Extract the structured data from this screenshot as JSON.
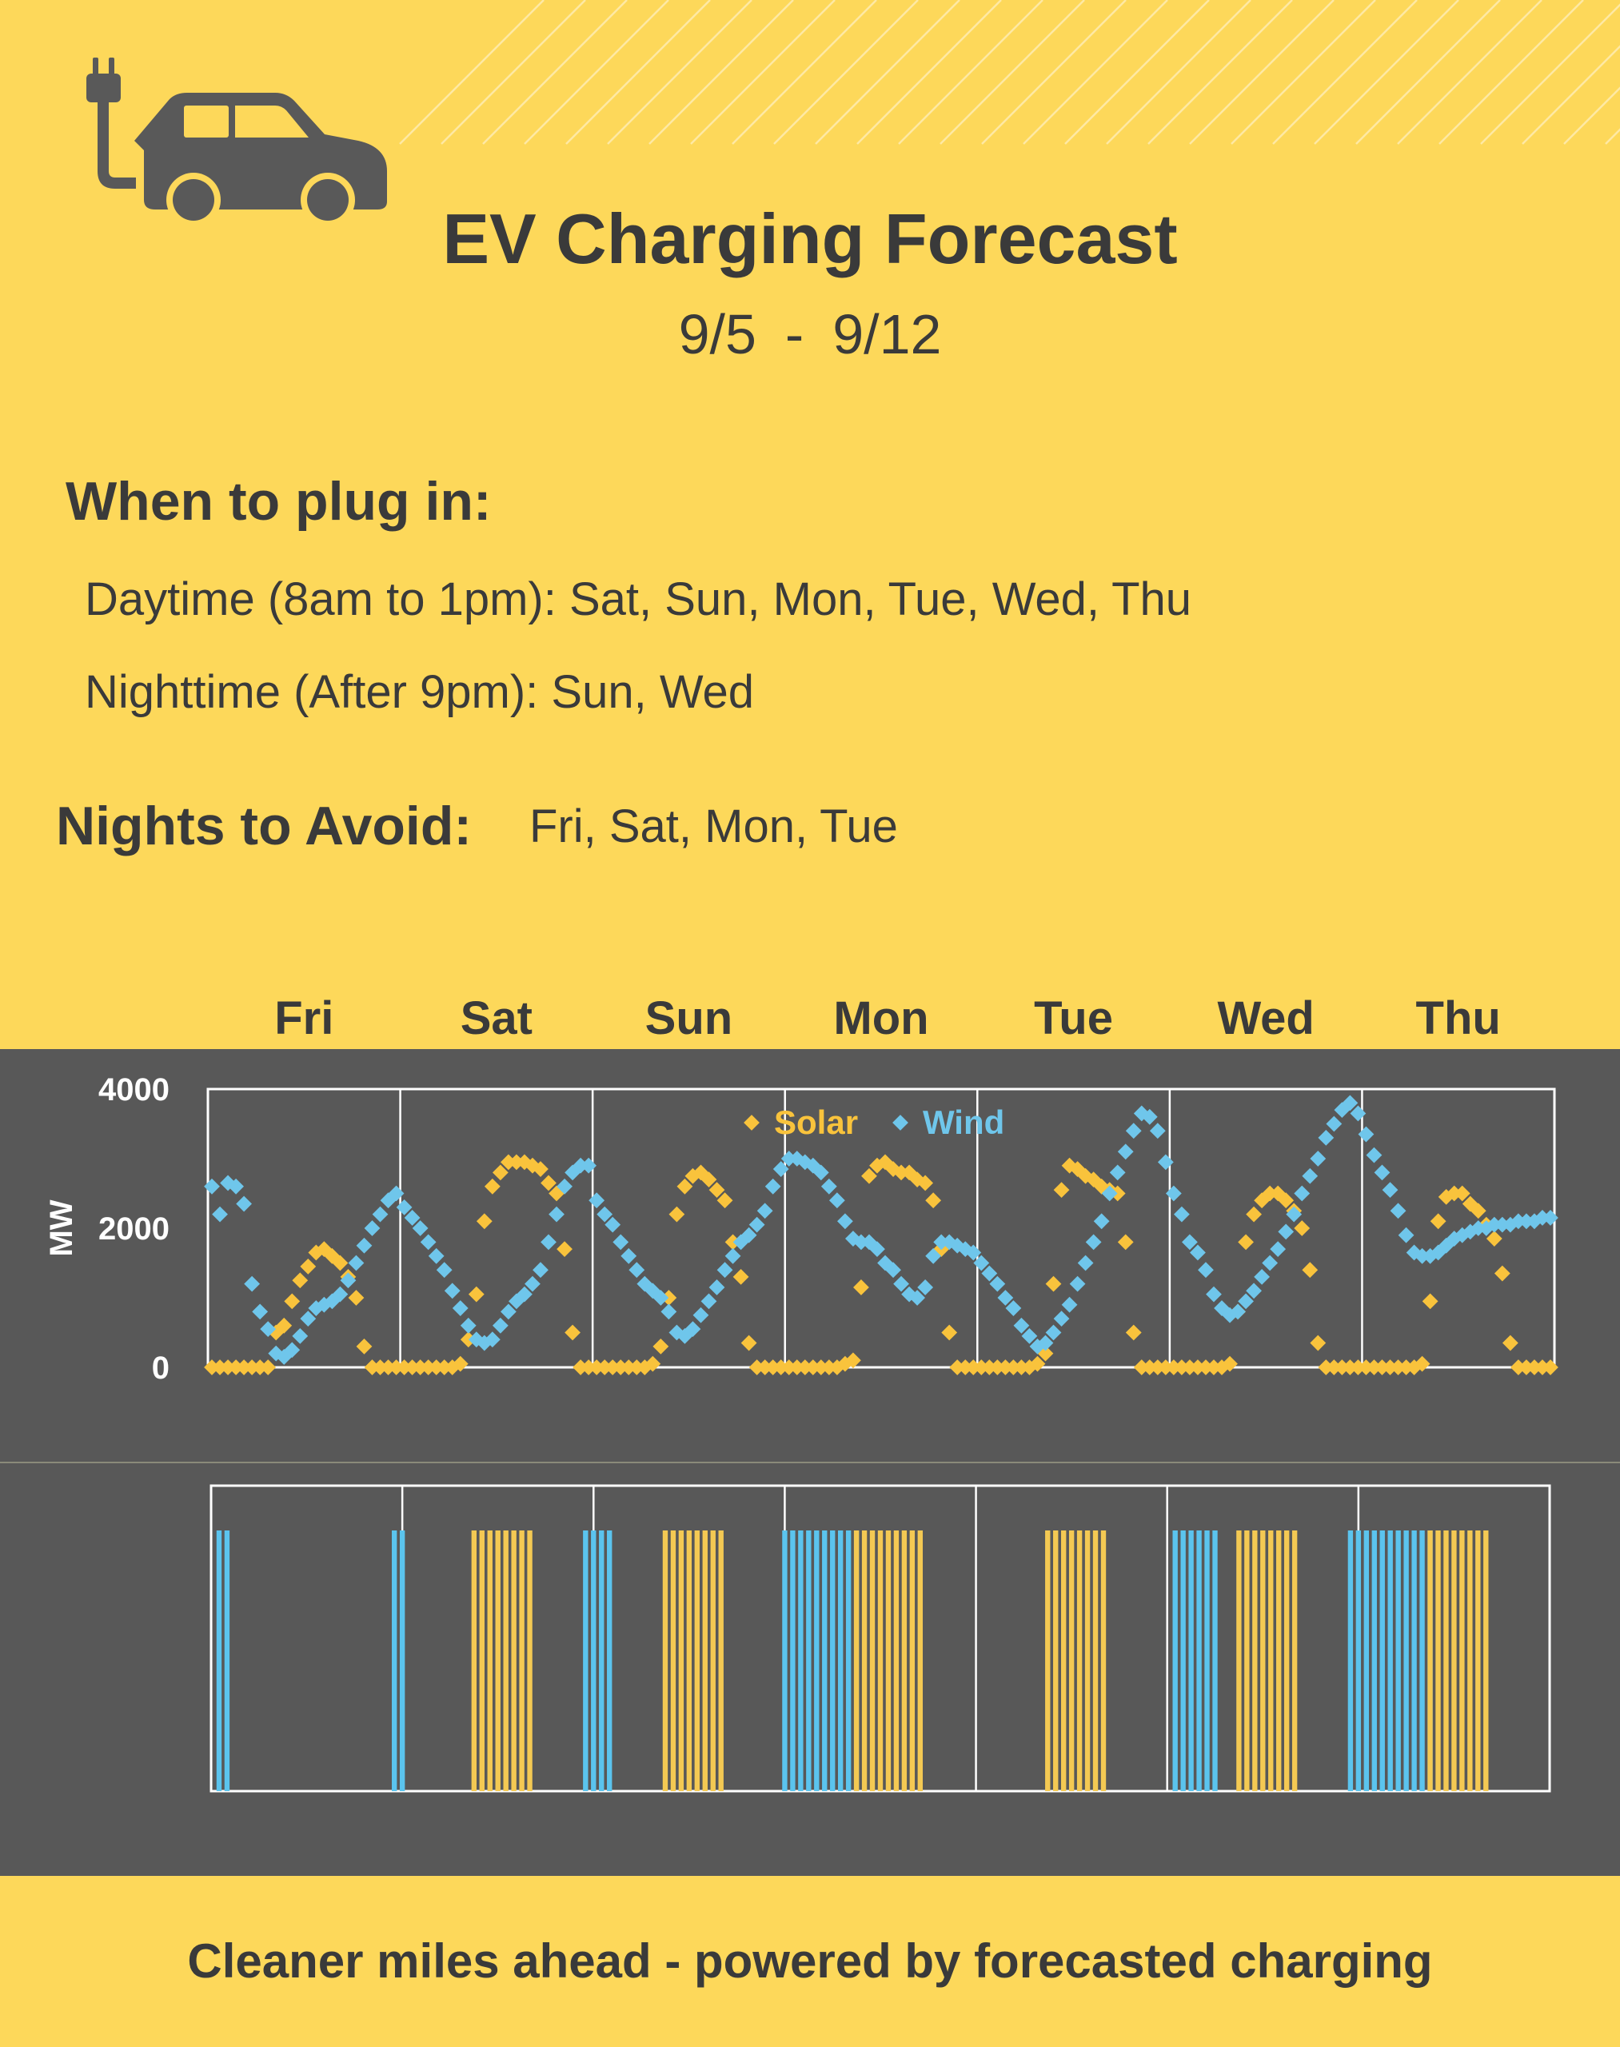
{
  "title": "EV Charging Forecast",
  "date_start": "9/5",
  "date_sep": "-",
  "date_end": "9/12",
  "plug_heading": "When to plug in:",
  "daytime_label": "Daytime (8am to 1pm):",
  "daytime_days": "Sat, Sun, Mon, Tue, Wed, Thu",
  "nighttime_label": "Nighttime  (After 9pm):",
  "nighttime_days": "Sun, Wed",
  "avoid_heading": "Nights to Avoid:",
  "avoid_days": "Fri, Sat, Mon, Tue",
  "footer": "Cleaner miles ahead - powered by forecasted charging",
  "icons": [
    "ev-plug-icon",
    "car-icon"
  ],
  "colors": {
    "background": "#FDD85A",
    "panel": "#585858",
    "text": "#3a3a3a",
    "solar": "#F9C33C",
    "wind": "#6FC6EB",
    "solar_bar": "#F4C953",
    "wind_bar": "#5BC4EE"
  },
  "chart_data": [
    {
      "type": "scatter",
      "title": "",
      "xlabel": "",
      "ylabel": "MW",
      "ylim": [
        0,
        4000
      ],
      "yticks": [
        0,
        2000,
        4000
      ],
      "xlim": [
        0,
        168
      ],
      "x_unit": "hour of forecast week (hourly points)",
      "categories": [
        "Fri",
        "Sat",
        "Sun",
        "Mon",
        "Tue",
        "Wed",
        "Thu"
      ],
      "grid": true,
      "legend": "top-center",
      "series": [
        {
          "name": "Solar",
          "color": "#F9C33C",
          "values": [
            0,
            0,
            0,
            0,
            0,
            0,
            0,
            0,
            500,
            600,
            950,
            1250,
            1450,
            1650,
            1700,
            1600,
            1500,
            1300,
            1000,
            300,
            0,
            0,
            0,
            0,
            0,
            0,
            0,
            0,
            0,
            0,
            0,
            50,
            400,
            1050,
            2100,
            2600,
            2800,
            2950,
            2950,
            2950,
            2900,
            2850,
            2650,
            2500,
            1700,
            500,
            0,
            0,
            0,
            0,
            0,
            0,
            0,
            0,
            0,
            50,
            300,
            1000,
            2200,
            2600,
            2750,
            2800,
            2700,
            2550,
            2400,
            1800,
            1300,
            350,
            0,
            0,
            0,
            0,
            0,
            0,
            0,
            0,
            0,
            0,
            0,
            50,
            100,
            1150,
            2750,
            2900,
            2950,
            2850,
            2800,
            2800,
            2700,
            2650,
            2400,
            1700,
            500,
            0,
            0,
            0,
            0,
            0,
            0,
            0,
            0,
            0,
            0,
            50,
            200,
            1200,
            2550,
            2900,
            2850,
            2750,
            2700,
            2600,
            2550,
            2500,
            1800,
            500,
            0,
            0,
            0,
            0,
            0,
            0,
            0,
            0,
            0,
            0,
            0,
            50,
            800,
            1800,
            2200,
            2400,
            2500,
            2500,
            2400,
            2250,
            2000,
            1400,
            350,
            0,
            0,
            0,
            0,
            0,
            0,
            0,
            0,
            0,
            0,
            0,
            0,
            50,
            950,
            2100,
            2450,
            2500,
            2500,
            2350,
            2250,
            2050,
            1850,
            1350,
            350,
            0,
            0,
            0,
            0,
            0
          ]
        },
        {
          "name": "Wind",
          "color": "#6FC6EB",
          "values": [
            2600,
            2200,
            2650,
            2600,
            2350,
            1200,
            800,
            550,
            200,
            150,
            250,
            450,
            700,
            850,
            900,
            950,
            1050,
            1250,
            1500,
            1750,
            2000,
            2200,
            2400,
            2500,
            2300,
            2150,
            2000,
            1800,
            1600,
            1400,
            1100,
            850,
            600,
            400,
            350,
            400,
            600,
            800,
            950,
            1050,
            1200,
            1400,
            1800,
            2200,
            2600,
            2800,
            2900,
            2900,
            2400,
            2200,
            2050,
            1800,
            1600,
            1400,
            1200,
            1100,
            1000,
            800,
            500,
            450,
            550,
            750,
            950,
            1150,
            1400,
            1600,
            1800,
            1900,
            2050,
            2250,
            2600,
            2850,
            3000,
            3000,
            2950,
            2900,
            2800,
            2600,
            2400,
            2100,
            1850,
            1800,
            1800,
            1700,
            1500,
            1400,
            1200,
            1050,
            1000,
            1150,
            1600,
            1800,
            1800,
            1750,
            1700,
            1650,
            1500,
            1350,
            1200,
            1000,
            850,
            600,
            450,
            300,
            350,
            500,
            700,
            900,
            1200,
            1500,
            1800,
            2100,
            2500,
            2800,
            3100,
            3400,
            3650,
            3600,
            3400,
            2950,
            2500,
            2200,
            1800,
            1650,
            1400,
            1050,
            850,
            750,
            800,
            950,
            1100,
            1300,
            1500,
            1700,
            1950,
            2200,
            2500,
            2750,
            3000,
            3300,
            3500,
            3700,
            3800,
            3650,
            3350,
            3050,
            2800,
            2550,
            2250,
            1900,
            1650,
            1600,
            1600,
            1650,
            1750,
            1850,
            1900,
            1950,
            2000,
            2000,
            2050,
            2050,
            2050,
            2100,
            2100,
            2100,
            2150,
            2150
          ]
        }
      ]
    },
    {
      "type": "bar",
      "title": "",
      "xlabel": "",
      "ylabel": "",
      "xlim": [
        0,
        168
      ],
      "x_unit": "hour of forecast week (hourly charging windows)",
      "categories": [
        "Fri",
        "Sat",
        "Sun",
        "Mon",
        "Tue",
        "Wed",
        "Thu"
      ],
      "grid": true,
      "series": [
        {
          "name": "Wind",
          "color": "#5BC4EE",
          "hours": [
            1,
            2,
            23,
            24,
            47,
            48,
            49,
            50,
            72,
            73,
            74,
            75,
            76,
            77,
            78,
            79,
            80,
            81,
            121,
            122,
            123,
            124,
            125,
            126,
            143,
            144,
            145,
            146,
            147,
            148,
            149,
            150,
            151,
            152,
            153
          ]
        },
        {
          "name": "Solar",
          "color": "#F4C953",
          "hours": [
            33,
            34,
            35,
            36,
            37,
            38,
            39,
            40,
            57,
            58,
            59,
            60,
            61,
            62,
            63,
            64,
            81,
            82,
            83,
            84,
            85,
            86,
            87,
            88,
            89,
            105,
            106,
            107,
            108,
            109,
            110,
            111,
            112,
            129,
            130,
            131,
            132,
            133,
            134,
            135,
            136,
            153,
            154,
            155,
            156,
            157,
            158,
            159,
            160
          ]
        }
      ]
    }
  ]
}
